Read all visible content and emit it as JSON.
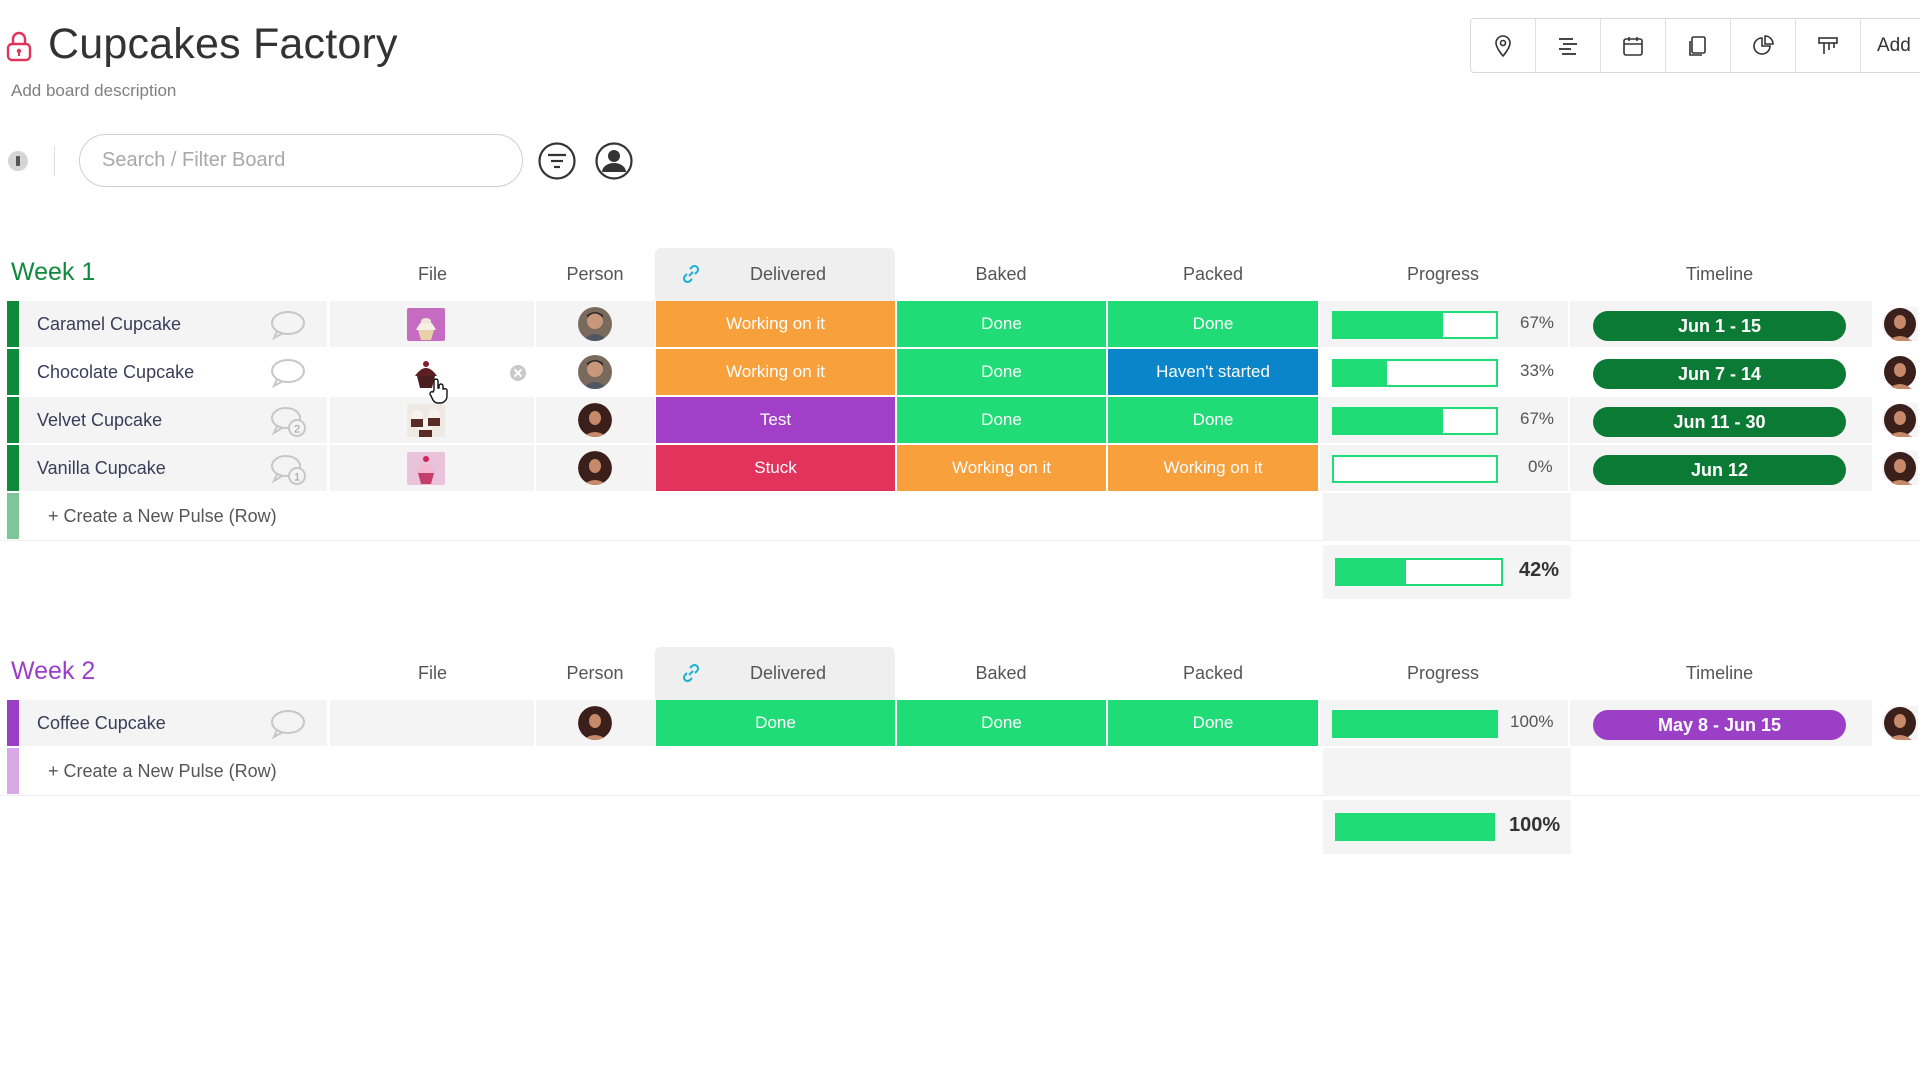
{
  "header": {
    "title": "Cupcakes Factory",
    "description": "Add board description",
    "add_label": "Add",
    "views": [
      "map-pin-icon",
      "gantt-icon",
      "calendar-icon",
      "files-icon",
      "chart-icon",
      "kanban-icon"
    ]
  },
  "search": {
    "placeholder": "Search / Filter Board"
  },
  "columns": {
    "file": "File",
    "person": "Person",
    "delivered": "Delivered",
    "baked": "Baked",
    "packed": "Packed",
    "progress": "Progress",
    "timeline": "Timeline"
  },
  "colors": {
    "working": "#f7a03c",
    "done": "#1fdc76",
    "stuck": "#e1335c",
    "not_started": "#0a85c9",
    "test": "#a23fc9",
    "week1": "#0f8a3c",
    "week2": "#9b3fc7",
    "timeline_green": "#0a7a34",
    "timeline_purple": "#9b3fc7"
  },
  "groups": [
    {
      "title": "Week 1",
      "create_label": "+ Create a New Pulse (Row)",
      "summary_progress": "42%",
      "rows": [
        {
          "name": "Caramel Cupcake",
          "chat_count": "",
          "delivered": "Working on it",
          "baked": "Done",
          "packed": "Done",
          "progress": "67%",
          "timeline": "Jun 1 - 15"
        },
        {
          "name": "Chocolate Cupcake",
          "chat_count": "",
          "delivered": "Working on it",
          "baked": "Done",
          "packed": "Haven't started",
          "progress": "33%",
          "timeline": "Jun 7 - 14"
        },
        {
          "name": "Velvet Cupcake",
          "chat_count": "2",
          "delivered": "Test",
          "baked": "Done",
          "packed": "Done",
          "progress": "67%",
          "timeline": "Jun 11 - 30"
        },
        {
          "name": "Vanilla Cupcake",
          "chat_count": "1",
          "delivered": "Stuck",
          "baked": "Working on it",
          "packed": "Working on it",
          "progress": "0%",
          "timeline": "Jun 12"
        }
      ]
    },
    {
      "title": "Week 2",
      "create_label": "+ Create a New Pulse (Row)",
      "summary_progress": "100%",
      "rows": [
        {
          "name": "Coffee Cupcake",
          "chat_count": "",
          "delivered": "Done",
          "baked": "Done",
          "packed": "Done",
          "progress": "100%",
          "timeline": "May 8 - Jun 15"
        }
      ]
    }
  ]
}
